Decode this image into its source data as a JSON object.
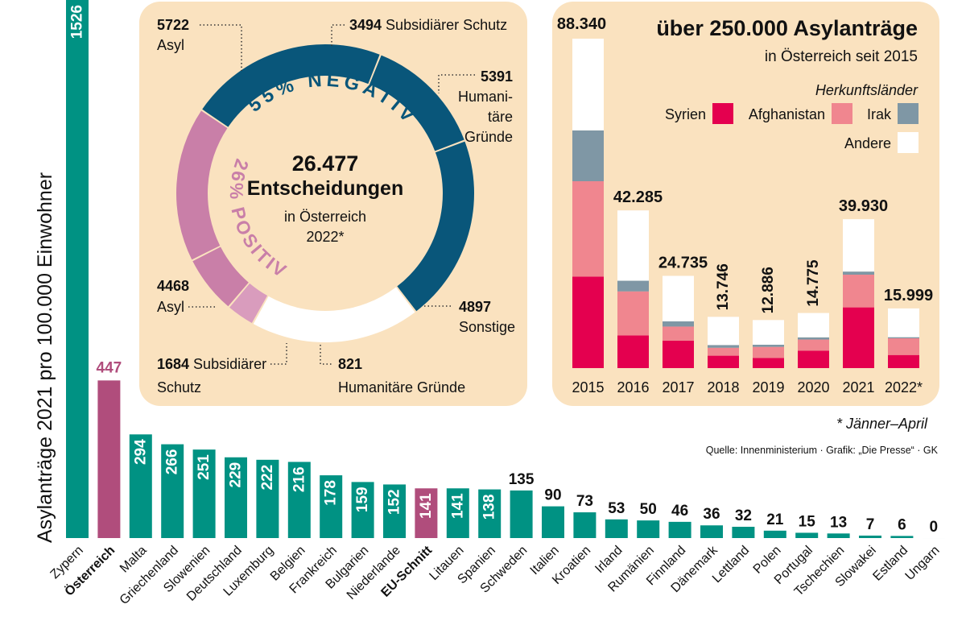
{
  "colors": {
    "teal": "#009283",
    "austria": "#b04d7c",
    "panel": "#fae2bf",
    "negative": "#09567a",
    "positive": "#c97fa8",
    "positive_light": "#d99cbd",
    "other": "#ffffff",
    "syria": "#e4004f",
    "afghanistan": "#f0868f",
    "iraq": "#7f97a5",
    "andere": "#ffffff"
  },
  "eu_chart": {
    "type": "bar",
    "ylabel": "Asylanträge 2021 pro 100.000 Einwohner",
    "categories": [
      "Zypern",
      "Österreich",
      "Malta",
      "Griechenland",
      "Slowenien",
      "Deutschland",
      "Luxemburg",
      "Belgien",
      "Frankreich",
      "Bulgarien",
      "Niederlande",
      "EU-Schnitt",
      "Litauen",
      "Spanien",
      "Schweden",
      "Italien",
      "Kroatien",
      "Irland",
      "Rumänien",
      "Finnland",
      "Dänemark",
      "Lettland",
      "Polen",
      "Portugal",
      "Tschechien",
      "Slowakei",
      "Estland",
      "Ungarn"
    ],
    "values": [
      1526,
      447,
      294,
      266,
      251,
      229,
      222,
      216,
      178,
      159,
      152,
      141,
      141,
      138,
      135,
      90,
      73,
      53,
      50,
      46,
      36,
      32,
      21,
      15,
      13,
      7,
      6,
      0
    ],
    "value_labels": [
      "1526",
      "447",
      "294",
      "266",
      "251",
      "229",
      "222",
      "216",
      "178",
      "159",
      "152",
      "141",
      "141",
      "138",
      "135",
      "90",
      "73",
      "53",
      "50",
      "46",
      "36",
      "32",
      "21",
      "15",
      "13",
      "7",
      "6",
      "0"
    ],
    "highlight": [
      "Österreich",
      "EU-Schnitt"
    ]
  },
  "donut": {
    "center_number": "26.477",
    "center_label": "Entscheidungen",
    "center_sub1": "in Österreich",
    "center_sub2": "2022*",
    "negative_label": "55% NEGATIV",
    "positive_label": "26% POSITIV",
    "segments": [
      {
        "group": "negativ",
        "value": 5722,
        "value_label": "5722",
        "label": "Asyl"
      },
      {
        "group": "negativ",
        "value": 3494,
        "value_label": "3494",
        "label": "Subsidiärer Schutz"
      },
      {
        "group": "negativ",
        "value": 5391,
        "value_label": "5391",
        "label_lines": [
          "Humani-",
          "täre",
          "Gründe"
        ]
      },
      {
        "group": "sonstige",
        "value": 4897,
        "value_label": "4897",
        "label": "Sonstige"
      },
      {
        "group": "positiv",
        "value": 821,
        "value_label": "821",
        "label": "Humanitäre Gründe"
      },
      {
        "group": "positiv",
        "value": 1684,
        "value_label": "1684",
        "label": "Subsidiärer",
        "label2": "Schutz"
      },
      {
        "group": "positiv",
        "value": 4468,
        "value_label": "4468",
        "label": "Asyl"
      }
    ]
  },
  "yearly": {
    "type": "stacked-bar",
    "title": "über 250.000 Asylanträge",
    "subtitle": "in Österreich seit 2015",
    "legend_title": "Herkunftsländer",
    "legend": [
      "Syrien",
      "Afghanistan",
      "Irak",
      "Andere"
    ],
    "years": [
      "2015",
      "2016",
      "2017",
      "2018",
      "2019",
      "2020",
      "2021",
      "2022*"
    ],
    "totals": [
      88340,
      42285,
      24735,
      13746,
      12886,
      14775,
      39930,
      15999
    ],
    "total_labels": [
      "88.340",
      "42.285",
      "24.735",
      "13.746",
      "12.886",
      "14.775",
      "39.930",
      "15.999"
    ],
    "syrien": [
      24547,
      8773,
      7356,
      3329,
      2708,
      4687,
      16284,
      3519
    ],
    "afghanistan": [
      25563,
      11794,
      3781,
      2120,
      2979,
      2970,
      8768,
      4469
    ],
    "irak": [
      13633,
      2862,
      1403,
      740,
      583,
      598,
      837,
      300
    ]
  },
  "footnote": "* Jänner–April",
  "source": "Quelle: Innenministerium · Grafik: „Die Presse“ · GK"
}
